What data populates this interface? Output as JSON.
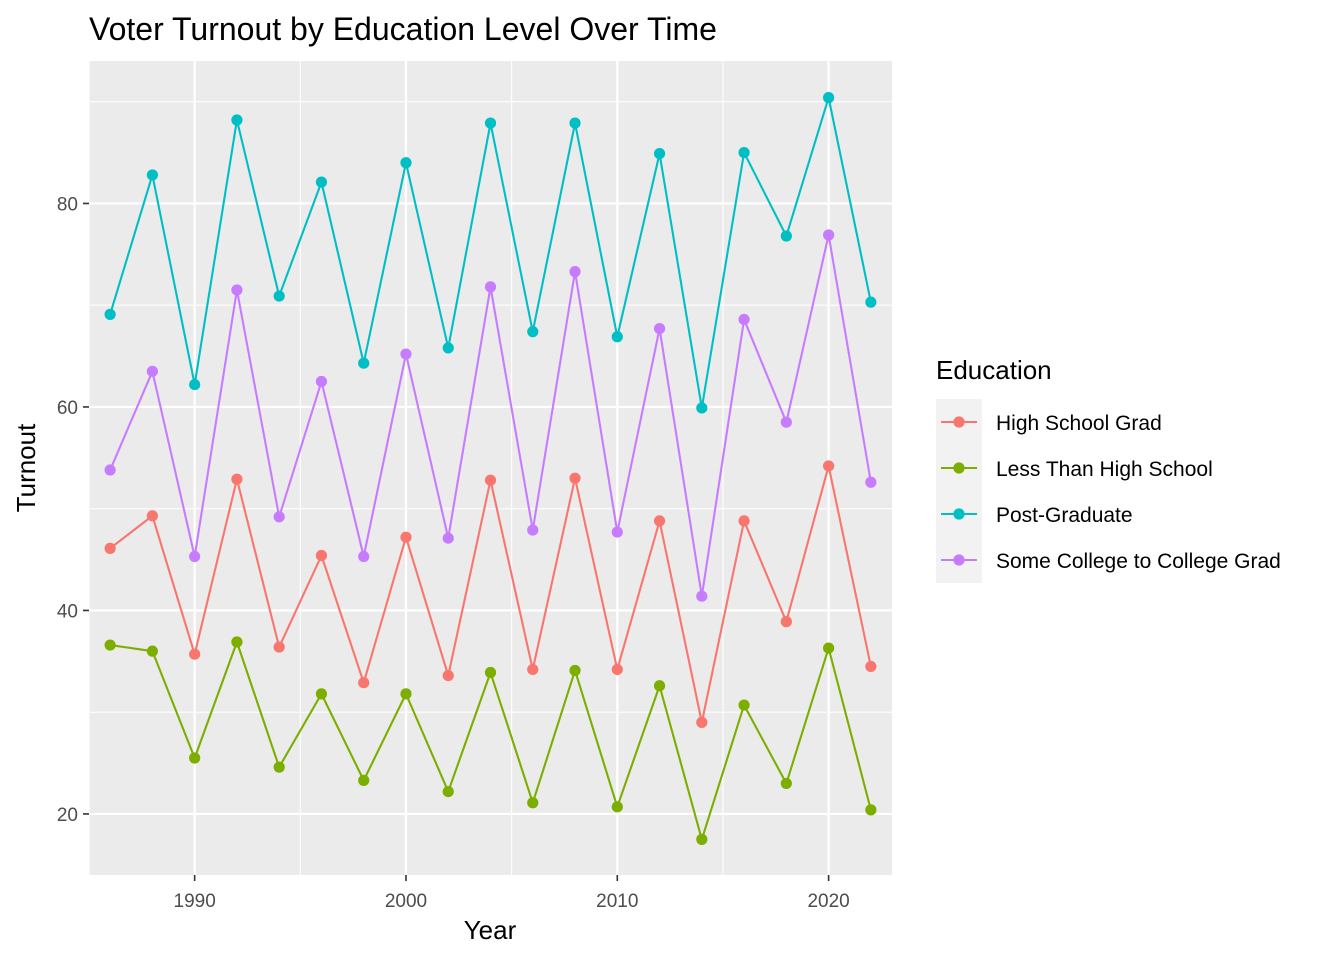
{
  "chart_data": {
    "type": "line",
    "title": "Voter Turnout by Education Level Over Time",
    "xlabel": "Year",
    "ylabel": "Turnout",
    "xlim": [
      1985,
      2023
    ],
    "ylim": [
      14,
      94
    ],
    "x_ticks": [
      1990,
      2000,
      2010,
      2020
    ],
    "x_tick_labels": [
      "1990",
      "2000",
      "2010",
      "2020"
    ],
    "y_ticks": [
      20,
      40,
      60,
      80
    ],
    "y_tick_labels": [
      "20",
      "40",
      "60",
      "80"
    ],
    "grid": true,
    "panel_background": "#ebebeb",
    "legend": {
      "title": "Education",
      "placement": "right",
      "key_background": "#f2f2f2"
    },
    "x": [
      1986,
      1988,
      1990,
      1992,
      1994,
      1996,
      1998,
      2000,
      2002,
      2004,
      2006,
      2008,
      2010,
      2012,
      2014,
      2016,
      2018,
      2020,
      2022
    ],
    "series": [
      {
        "name": "High School Grad",
        "color": "#F8766D",
        "values": [
          46.1,
          49.3,
          35.7,
          52.9,
          36.4,
          45.4,
          32.9,
          47.2,
          33.6,
          52.8,
          34.2,
          53.0,
          34.2,
          48.8,
          29.0,
          48.8,
          38.9,
          54.2,
          34.5
        ]
      },
      {
        "name": "Less Than High School",
        "color": "#7CAE00",
        "values": [
          36.6,
          36.0,
          25.5,
          36.9,
          24.6,
          31.8,
          23.3,
          31.8,
          22.2,
          33.9,
          21.1,
          34.1,
          20.7,
          32.6,
          17.5,
          30.7,
          23.0,
          36.3,
          20.4
        ]
      },
      {
        "name": "Post-Graduate",
        "color": "#00BFC4",
        "values": [
          69.1,
          82.8,
          62.2,
          88.2,
          70.9,
          82.1,
          64.3,
          84.0,
          65.8,
          87.9,
          67.4,
          87.9,
          66.9,
          84.9,
          59.9,
          85.0,
          76.8,
          90.4,
          70.3
        ]
      },
      {
        "name": "Some College to College Grad",
        "color": "#C77CFF",
        "values": [
          53.8,
          63.5,
          45.3,
          71.5,
          49.2,
          62.5,
          45.3,
          65.2,
          47.1,
          71.8,
          47.9,
          73.3,
          47.7,
          67.7,
          41.4,
          68.6,
          58.5,
          76.9,
          52.6
        ]
      }
    ]
  }
}
